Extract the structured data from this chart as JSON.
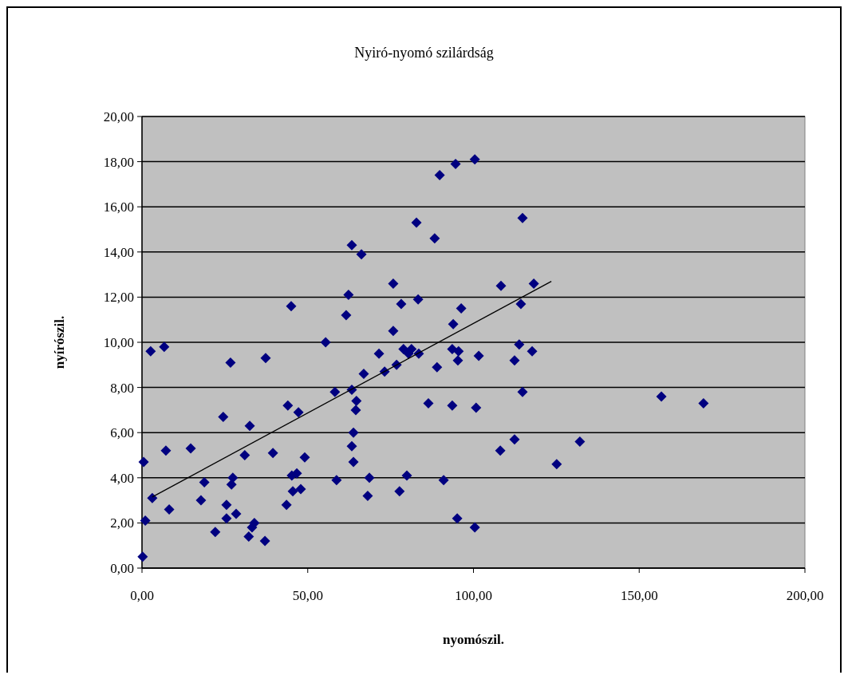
{
  "chart_data": {
    "type": "scatter",
    "title": "Nyiró-nyomó szilárdság",
    "xlabel": "nyomószil.",
    "ylabel": "nyírószil.",
    "xlim": [
      0,
      200
    ],
    "ylim": [
      0,
      20
    ],
    "xticks": [
      {
        "value": 0,
        "label": "0,00"
      },
      {
        "value": 50,
        "label": "50,00"
      },
      {
        "value": 100,
        "label": "100,00"
      },
      {
        "value": 150,
        "label": "150,00"
      },
      {
        "value": 200,
        "label": "200,00"
      }
    ],
    "yticks": [
      {
        "value": 0,
        "label": "0,00"
      },
      {
        "value": 2,
        "label": "2,00"
      },
      {
        "value": 4,
        "label": "4,00"
      },
      {
        "value": 6,
        "label": "6,00"
      },
      {
        "value": 8,
        "label": "8,00"
      },
      {
        "value": 10,
        "label": "10,00"
      },
      {
        "value": 12,
        "label": "12,00"
      },
      {
        "value": 14,
        "label": "14,00"
      },
      {
        "value": 16,
        "label": "16,00"
      },
      {
        "value": 18,
        "label": "18,00"
      },
      {
        "value": 20,
        "label": "20,00"
      }
    ],
    "grid": "y",
    "marker": "diamond",
    "series": [
      {
        "color": "#000080",
        "x": [
          0.2,
          0.5,
          1.0,
          3.1,
          2.6,
          6.7,
          7.2,
          8.2,
          14.7,
          17.8,
          18.8,
          22.1,
          24.5,
          25.5,
          25.5,
          26.7,
          27.0,
          27.4,
          28.4,
          31.0,
          32.2,
          32.5,
          33.9,
          33.2,
          37.1,
          37.3,
          39.5,
          43.6,
          44.0,
          45.0,
          45.2,
          46.7,
          45.5,
          47.9,
          47.2,
          49.1,
          55.4,
          58.2,
          58.7,
          61.6,
          62.3,
          63.3,
          63.3,
          63.8,
          63.3,
          63.8,
          64.7,
          64.5,
          66.2,
          66.9,
          68.1,
          68.6,
          71.5,
          73.2,
          75.8,
          75.8,
          76.8,
          77.7,
          78.2,
          78.9,
          79.9,
          80.4,
          81.3,
          82.8,
          83.3,
          83.5,
          86.4,
          88.3,
          89.0,
          89.8,
          91.0,
          93.9,
          93.6,
          93.6,
          94.6,
          95.1,
          95.3,
          95.5,
          96.3,
          100.4,
          100.4,
          100.8,
          101.6,
          108.1,
          108.3,
          112.4,
          112.4,
          113.8,
          114.3,
          114.8,
          114.8,
          117.7,
          118.2,
          125.1,
          132.1,
          156.7,
          169.4
        ],
        "values": [
          0.5,
          4.7,
          2.1,
          3.1,
          9.6,
          9.8,
          5.2,
          2.6,
          5.3,
          3.0,
          3.8,
          1.6,
          6.7,
          2.2,
          2.8,
          9.1,
          3.7,
          4.0,
          2.4,
          5.0,
          1.4,
          6.3,
          2.0,
          1.8,
          1.2,
          9.3,
          5.1,
          2.8,
          7.2,
          11.6,
          4.1,
          4.2,
          3.4,
          3.5,
          6.9,
          4.9,
          10.0,
          7.8,
          3.9,
          11.2,
          12.1,
          14.3,
          7.9,
          6.0,
          5.4,
          4.7,
          7.4,
          7.0,
          13.9,
          8.6,
          3.2,
          4.0,
          9.5,
          8.7,
          12.6,
          10.5,
          9.0,
          3.4,
          11.7,
          9.7,
          4.1,
          9.5,
          9.7,
          15.3,
          11.9,
          9.5,
          7.3,
          14.6,
          8.9,
          17.4,
          3.9,
          10.8,
          9.7,
          7.2,
          17.9,
          2.2,
          9.2,
          9.6,
          11.5,
          18.1,
          1.8,
          7.1,
          9.4,
          5.2,
          12.5,
          5.7,
          9.2,
          9.9,
          11.7,
          15.5,
          7.8,
          9.6,
          12.6,
          4.6,
          5.6,
          7.6,
          7.3
        ]
      },
      {
        "type": "line",
        "color": "#000000",
        "line_style": "solid",
        "marker": "none",
        "x": [
          3.1,
          123.5
        ],
        "values": [
          3.15,
          12.7
        ]
      }
    ]
  }
}
